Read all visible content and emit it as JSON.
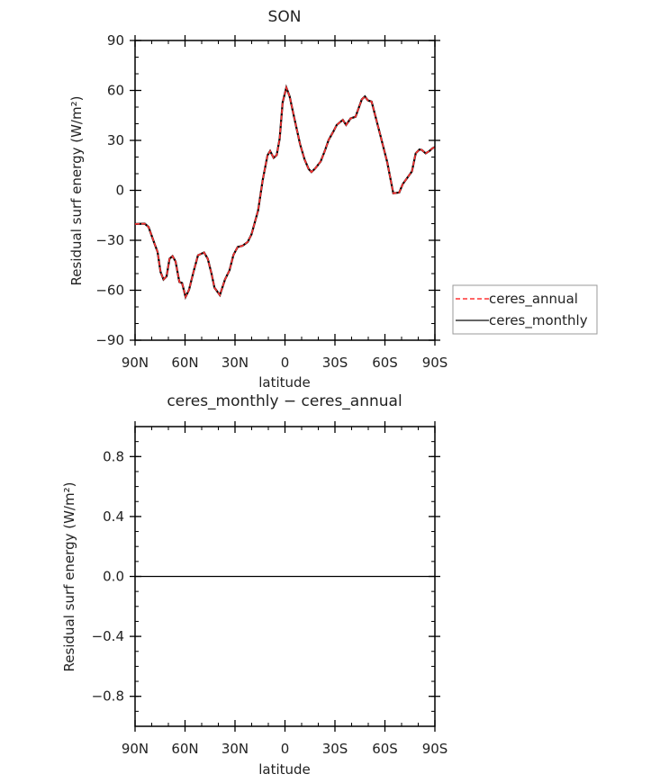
{
  "chart_data": [
    {
      "type": "line",
      "title": "SON",
      "xlabel": "latitude",
      "ylabel": "Residual surf energy (W/m²)",
      "xlim": [
        90,
        -90
      ],
      "ylim": [
        -90,
        90
      ],
      "xticks": [
        90,
        60,
        30,
        0,
        -30,
        -60,
        -90
      ],
      "xtick_labels": [
        "90N",
        "60N",
        "30N",
        "0",
        "30S",
        "60S",
        "90S"
      ],
      "yticks": [
        90,
        60,
        30,
        0,
        -30,
        -60,
        -90
      ],
      "ytick_labels": [
        "90",
        "60",
        "30",
        "0",
        "−30",
        "−60",
        "−90"
      ],
      "grid": false,
      "legend_position": "right",
      "x": [
        90,
        89.5,
        84.2,
        81.9,
        78.3,
        76.5,
        74.7,
        72.9,
        71.1,
        69.3,
        67.5,
        65.7,
        63.4,
        61.8,
        59.7,
        57.6,
        54.9,
        52.2,
        48.6,
        46.4,
        44.1,
        42.3,
        39.1,
        36,
        33.3,
        30.9,
        28.4,
        25.5,
        22.4,
        20.1,
        16.1,
        13.4,
        10.5,
        8.9,
        6.8,
        5,
        3.2,
        1.4,
        -0.8,
        -2.8,
        -5.5,
        -9.1,
        -11.8,
        -14.2,
        -15.9,
        -18.1,
        -21.4,
        -23.9,
        -26.2,
        -28.9,
        -31.1,
        -34.7,
        -36.7,
        -39.4,
        -42.4,
        -46.1,
        -48,
        -49.8,
        -52,
        -56.8,
        -61.4,
        -65,
        -68.6,
        -70.7,
        -74,
        -76.2,
        -78.5,
        -80.7,
        -82.1,
        -84.5,
        -86.7,
        -88.4,
        -90
      ],
      "series": [
        {
          "name": "ceres_annual",
          "color": "#ff3333",
          "dash": "dashed",
          "values": [
            -20.2,
            -20.2,
            -20,
            -22,
            -32,
            -37,
            -49,
            -53.5,
            -51.7,
            -41,
            -39.5,
            -42.7,
            -55,
            -55.7,
            -64,
            -59.8,
            -49,
            -39,
            -37.3,
            -41,
            -50,
            -58.5,
            -62.9,
            -53.5,
            -48,
            -38.7,
            -34,
            -33.3,
            -31,
            -26.5,
            -12,
            6,
            21,
            23.6,
            19.5,
            21.2,
            31,
            52.8,
            61.8,
            56.4,
            43.8,
            27.6,
            18.5,
            12.8,
            11,
            13.1,
            17.3,
            23.6,
            30.3,
            35.1,
            39.3,
            42.3,
            39.3,
            43.2,
            44.2,
            54.6,
            56.4,
            54,
            53.3,
            34.8,
            16.8,
            -1.8,
            -1.3,
            3.8,
            8.3,
            11.4,
            22.2,
            24.5,
            24.3,
            22.2,
            23.6,
            25.2,
            26
          ]
        },
        {
          "name": "ceres_monthly",
          "color": "#000000",
          "dash": "solid",
          "values": [
            -20.2,
            -20.2,
            -20,
            -22,
            -32,
            -37,
            -49,
            -53.5,
            -51.7,
            -41,
            -39.5,
            -42.7,
            -55,
            -55.7,
            -64,
            -59.8,
            -49,
            -39,
            -37.3,
            -41,
            -50,
            -58.5,
            -62.9,
            -53.5,
            -48,
            -38.7,
            -34,
            -33.3,
            -31,
            -26.5,
            -12,
            6,
            21,
            23.6,
            19.5,
            21.2,
            31,
            52.8,
            61.8,
            56.4,
            43.8,
            27.6,
            18.5,
            12.8,
            11,
            13.1,
            17.3,
            23.6,
            30.3,
            35.1,
            39.3,
            42.3,
            39.3,
            43.2,
            44.2,
            54.6,
            56.4,
            54,
            53.3,
            34.8,
            16.8,
            -1.8,
            -1.3,
            3.8,
            8.3,
            11.4,
            22.2,
            24.5,
            24.3,
            22.2,
            23.6,
            25.2,
            26
          ]
        }
      ]
    },
    {
      "type": "line",
      "title": "ceres_monthly − ceres_annual",
      "xlabel": "latitude",
      "ylabel": "Residual surf energy (W/m²)",
      "xlim": [
        90,
        -90
      ],
      "ylim": [
        -1,
        1
      ],
      "xticks": [
        90,
        60,
        30,
        0,
        -30,
        -60,
        -90
      ],
      "xtick_labels": [
        "90N",
        "60N",
        "30N",
        "0",
        "30S",
        "60S",
        "90S"
      ],
      "yticks": [
        0.8,
        0.4,
        0.0,
        -0.4,
        -0.8
      ],
      "ytick_labels": [
        "0.8",
        "0.4",
        "0.0",
        "−0.4",
        "−0.8"
      ],
      "grid": false,
      "x": [
        90,
        -90
      ],
      "series": [
        {
          "color": "#000000",
          "values": [
            0,
            0
          ]
        }
      ]
    }
  ]
}
